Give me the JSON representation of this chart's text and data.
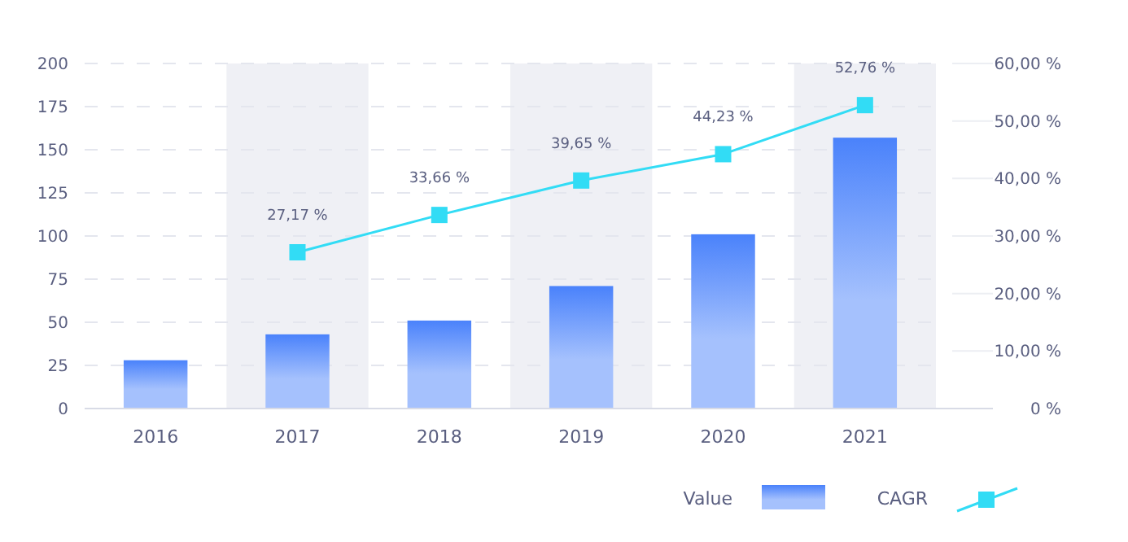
{
  "chart_data": {
    "type": "bar",
    "categories": [
      "2016",
      "2017",
      "2018",
      "2019",
      "2020",
      "2021"
    ],
    "series": [
      {
        "name": "Value",
        "color": "#4a82fb",
        "values": [
          28,
          43,
          51,
          71,
          101,
          157
        ]
      },
      {
        "name": "CAGR",
        "type": "line",
        "axis": "y2",
        "color": "#32dcf5",
        "marker": "square",
        "values": [
          null,
          27.17,
          33.66,
          39.65,
          44.23,
          52.76
        ],
        "value_labels": [
          null,
          "27,17 %",
          "33,66 %",
          "39,65 %",
          "44,23 %",
          "52,76 %"
        ]
      }
    ],
    "ylim": [
      0,
      200
    ],
    "yticks": [
      0,
      25,
      50,
      75,
      100,
      125,
      150,
      175,
      200
    ],
    "y2lim": [
      0,
      60
    ],
    "y2ticks": [
      {
        "value": 0,
        "label": "0 %"
      },
      {
        "value": 10,
        "label": "10,00 %"
      },
      {
        "value": 20,
        "label": "20,00 %"
      },
      {
        "value": 30,
        "label": "30,00 %"
      },
      {
        "value": 40,
        "label": "40,00 %"
      },
      {
        "value": 50,
        "label": "50,00 %"
      },
      {
        "value": 60,
        "label": "60,00 %"
      }
    ],
    "bands": [
      {
        "axis": "x",
        "from": "2017",
        "to": "2017",
        "color": "#eff0f5"
      },
      {
        "axis": "x",
        "from": "2019",
        "to": "2019",
        "color": "#eff0f5"
      },
      {
        "axis": "x",
        "from": "2021",
        "to": "2021",
        "color": "#eff0f5"
      }
    ],
    "grid": "y",
    "legend": "bottom right"
  }
}
